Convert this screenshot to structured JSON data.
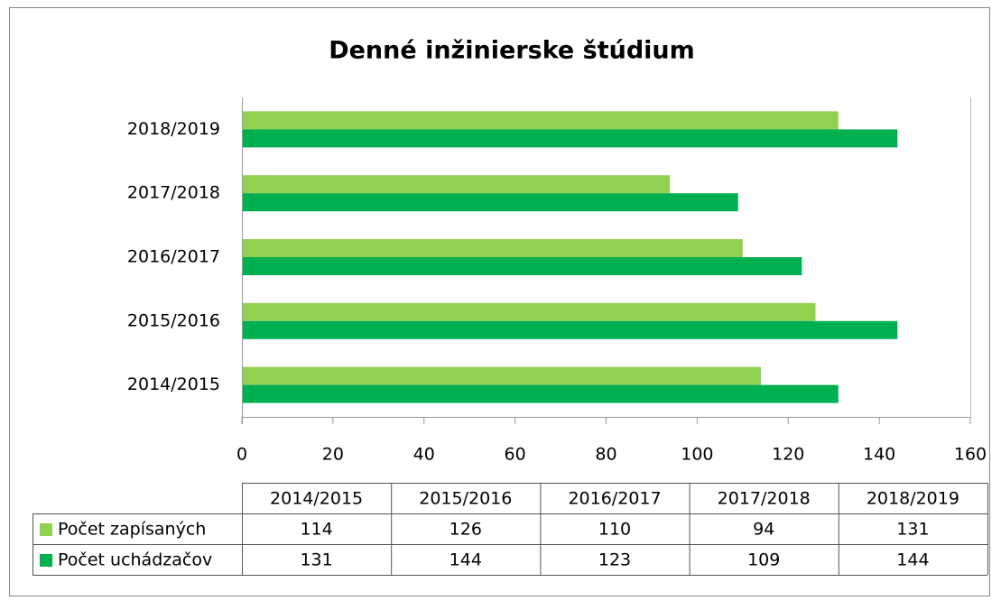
{
  "chart_data": {
    "type": "bar",
    "orientation": "horizontal",
    "title": "Denné inžinierske štúdium",
    "categories": [
      "2014/2015",
      "2015/2016",
      "2016/2017",
      "2017/2018",
      "2018/2019"
    ],
    "series": [
      {
        "name": "Počet zapísaných",
        "color": "#92d050",
        "values": [
          114,
          126,
          110,
          94,
          131
        ]
      },
      {
        "name": "Počet uchádzačov",
        "color": "#00b050",
        "values": [
          131,
          144,
          123,
          109,
          144
        ]
      }
    ],
    "xlim": [
      0,
      160
    ],
    "xticks": [
      0,
      20,
      40,
      60,
      80,
      100,
      120,
      140,
      160
    ],
    "data_table": true
  }
}
